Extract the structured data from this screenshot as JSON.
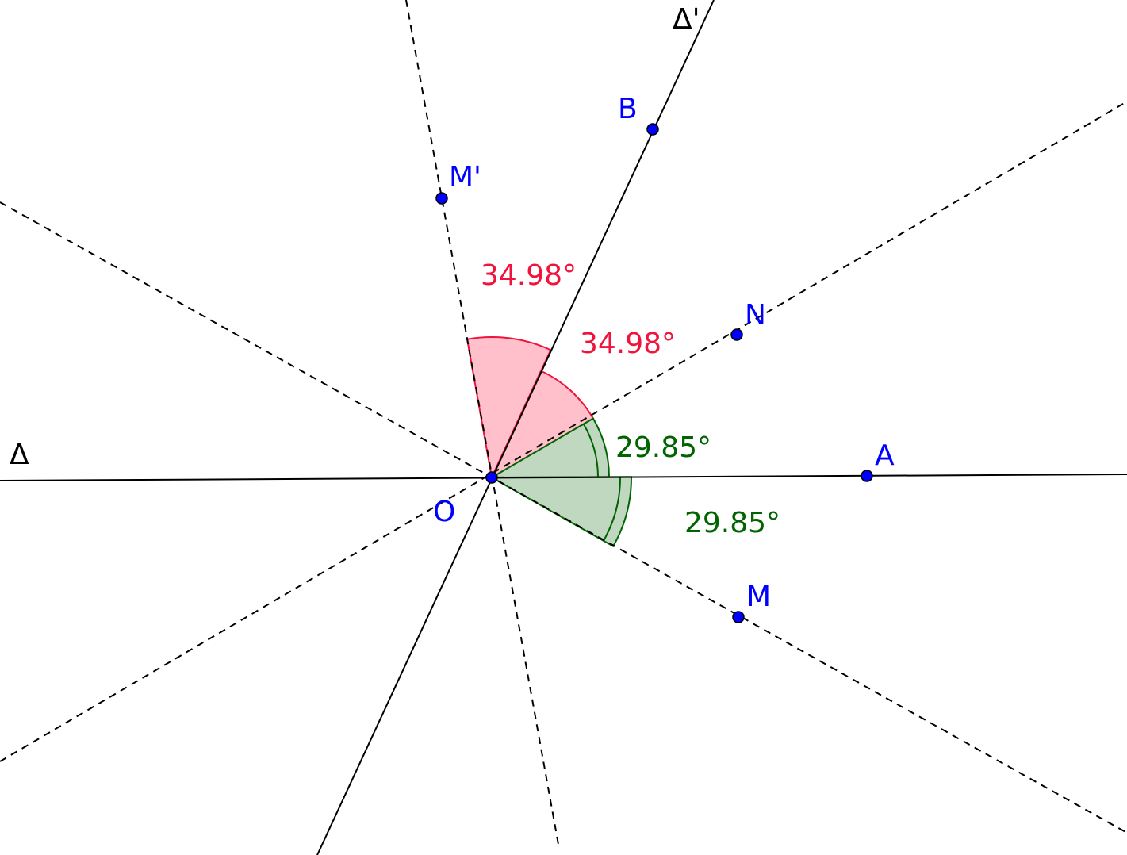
{
  "lines": {
    "delta": "Δ",
    "delta_prime": "Δ'"
  },
  "points": {
    "O": "O",
    "A": "A",
    "B": "B",
    "N": "N",
    "M": "M",
    "M_prime": "M'"
  },
  "angles": {
    "m_prime_o_b": "34.98°",
    "b_o_n": "34.98°",
    "n_o_a": "29.85°",
    "a_o_m": "29.85°"
  },
  "colors": {
    "point": "#0000ff",
    "red_angle": "#f0143c",
    "red_fill": "#ffc0cb",
    "green_angle": "#006400",
    "green_fill": "#c0d8c0"
  }
}
